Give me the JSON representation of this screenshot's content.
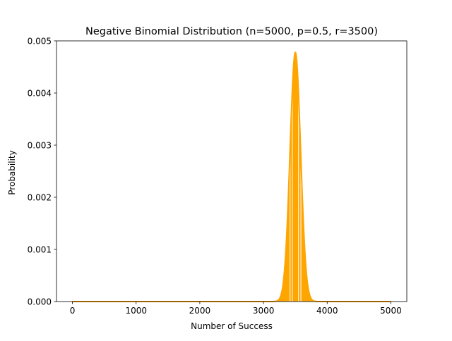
{
  "chart_data": {
    "type": "area",
    "title": "Negative Binomial Distribution (n=5000, p=0.5, r=3500)",
    "xlabel": "Number of Success",
    "ylabel": "Probability",
    "xlim": [
      -250,
      5250
    ],
    "ylim": [
      0,
      0.005
    ],
    "xticks": [
      0,
      1000,
      2000,
      3000,
      4000,
      5000
    ],
    "yticks": [
      0,
      0.001,
      0.002,
      0.003,
      0.004,
      0.005
    ],
    "xtick_labels": [
      "0",
      "1000",
      "2000",
      "3000",
      "4000",
      "5000"
    ],
    "ytick_labels": [
      "0.000",
      "0.001",
      "0.002",
      "0.003",
      "0.004",
      "0.005"
    ],
    "series": [
      {
        "mean": 3500,
        "std": 83.5,
        "x_range": [
          0,
          5000
        ],
        "color": "#ffa500"
      }
    ],
    "gap_ranges": [
      [
        3412,
        3420
      ],
      [
        3447,
        3455
      ],
      [
        3545,
        3553
      ],
      [
        3582,
        3590
      ]
    ],
    "grid": false,
    "legend": null
  }
}
